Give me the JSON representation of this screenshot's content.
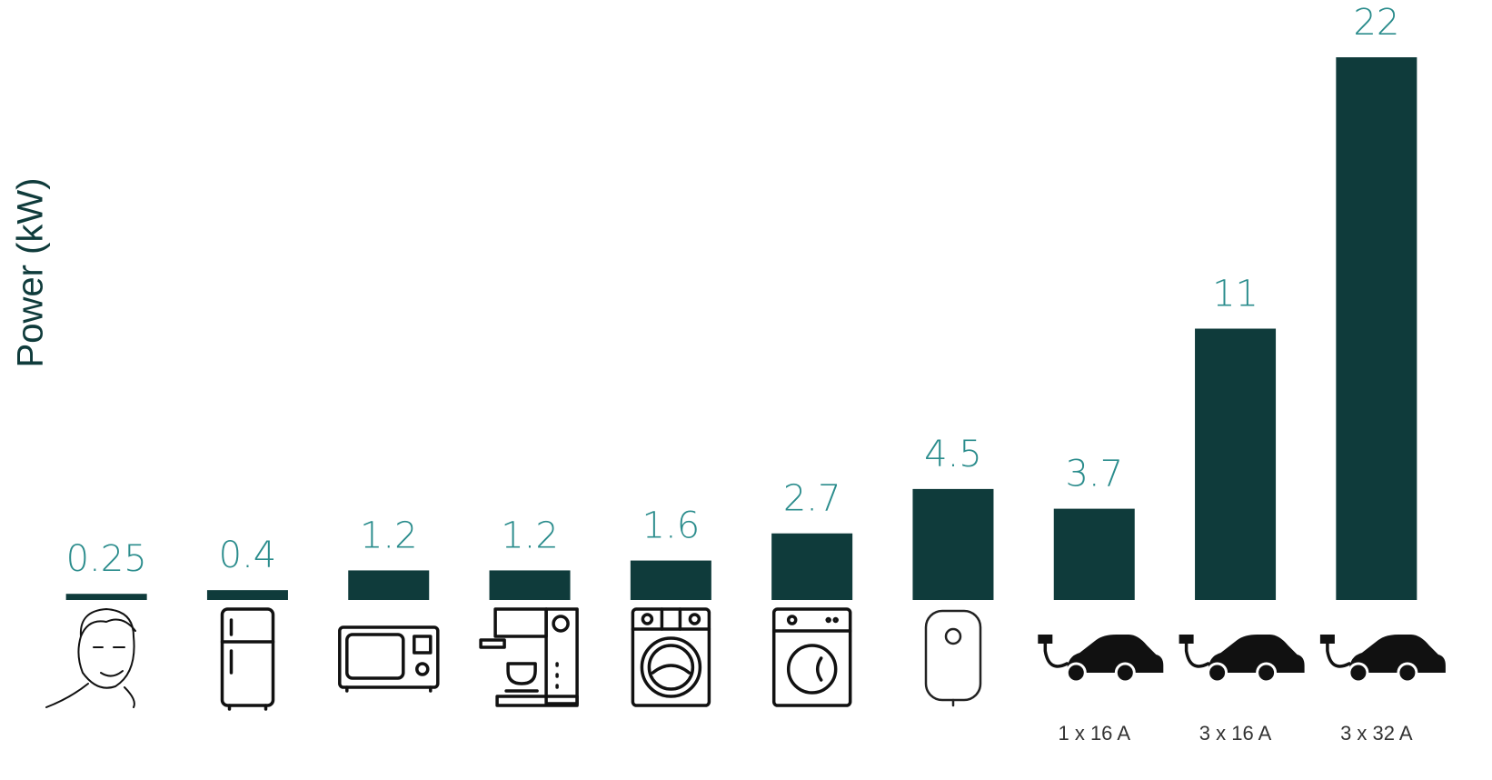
{
  "chart_data": {
    "type": "bar",
    "y_label": "Power (kW)",
    "categories": [
      null,
      null,
      null,
      null,
      null,
      null,
      null,
      "1 x 16 A",
      "3 x 16 A",
      "3 x 32 A"
    ],
    "values": [
      0.25,
      0.4,
      1.2,
      1.2,
      1.6,
      2.7,
      4.5,
      3.7,
      11,
      22
    ],
    "color": "#0f3b3b",
    "label_color": "#2a8c8c",
    "ylim": [
      0,
      22
    ]
  }
}
